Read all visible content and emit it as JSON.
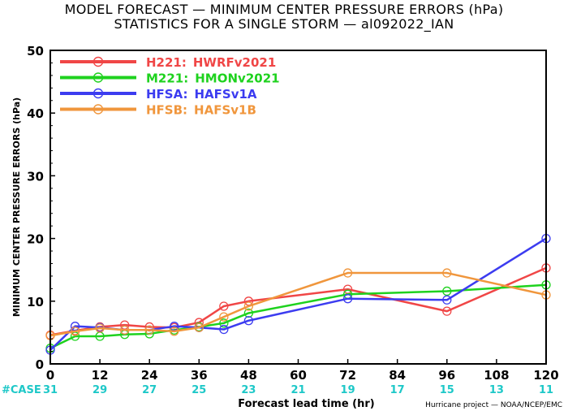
{
  "chart_data": {
    "type": "line",
    "title": "MODEL FORECAST — MINIMUM CENTER PRESSURE ERRORS (hPa)",
    "subtitle": "STATISTICS FOR A SINGLE STORM — al092022_IAN",
    "xlabel": "Forecast lead time (hr)",
    "ylabel": "MINIMUM CENTER PRESSURE ERRORS (hPa)",
    "xlim": [
      0,
      120
    ],
    "ylim": [
      0,
      50
    ],
    "x_ticks": [
      "0",
      "12",
      "24",
      "36",
      "48",
      "60",
      "72",
      "84",
      "96",
      "108",
      "120"
    ],
    "y_ticks": [
      "0",
      "10",
      "20",
      "30",
      "40",
      "50"
    ],
    "case_label": "#CASE",
    "cases": {
      "x": [
        0,
        12,
        24,
        36,
        48,
        60,
        72,
        84,
        96,
        108,
        120
      ],
      "values": [
        "31",
        "29",
        "27",
        "25",
        "23",
        "21",
        "19",
        "17",
        "15",
        "13",
        "11"
      ]
    },
    "credit": "Hurricane project — NOAA/NCEP/EMC",
    "legend_placement": "top-left",
    "series": [
      {
        "code": "H221:",
        "name": "HWRFv2021",
        "color": "#f04646",
        "x": [
          0,
          6,
          12,
          18,
          24,
          30,
          36,
          42,
          48,
          72,
          96,
          120
        ],
        "y": [
          4.6,
          5.3,
          5.9,
          6.2,
          5.9,
          5.8,
          6.6,
          9.2,
          10.0,
          11.9,
          8.4,
          15.3
        ]
      },
      {
        "code": "M221:",
        "name": "HMONv2021",
        "color": "#1ed21e",
        "x": [
          0,
          6,
          12,
          18,
          24,
          30,
          36,
          42,
          48,
          72,
          96,
          120
        ],
        "y": [
          2.5,
          4.4,
          4.4,
          4.7,
          4.8,
          5.4,
          5.9,
          6.5,
          8.1,
          11.1,
          11.6,
          12.6
        ]
      },
      {
        "code": "HFSA:",
        "name": "HAFSv1A",
        "color": "#3c3cf0",
        "x": [
          0,
          6,
          12,
          18,
          24,
          30,
          36,
          42,
          48,
          72,
          96,
          120
        ],
        "y": [
          2.2,
          6.0,
          5.8,
          5.4,
          5.4,
          6.0,
          5.8,
          5.5,
          6.9,
          10.4,
          10.2,
          20.0
        ]
      },
      {
        "code": "HFSB:",
        "name": "HAFSv1B",
        "color": "#f0963c",
        "x": [
          0,
          6,
          12,
          18,
          24,
          30,
          36,
          42,
          48,
          72,
          96,
          120
        ],
        "y": [
          4.5,
          5.2,
          5.7,
          5.4,
          5.4,
          5.2,
          5.8,
          7.5,
          9.2,
          14.5,
          14.5,
          11.0
        ]
      }
    ]
  }
}
